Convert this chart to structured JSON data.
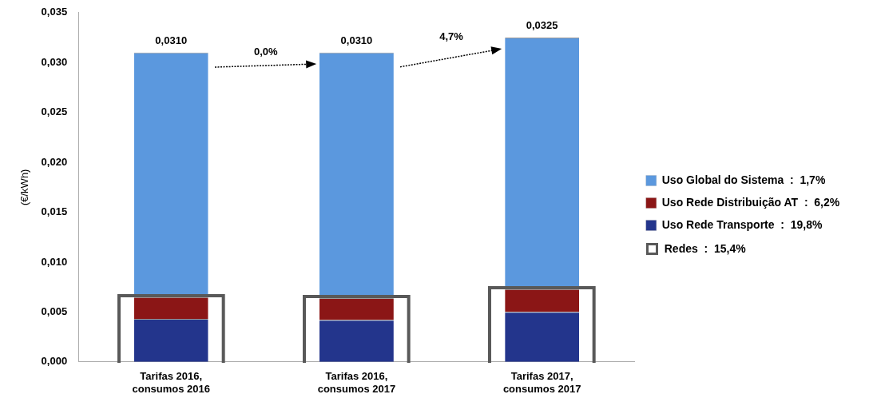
{
  "chart_data": {
    "type": "bar",
    "stacked": true,
    "ylabel": "(€/kWh)",
    "categories": [
      "Tarifas 2016, consumos 2016",
      "Tarifas 2016, consumos 2017",
      "Tarifas 2017, consumos 2017"
    ],
    "series": [
      {
        "name": "Uso Rede Transporte  :  19,8%",
        "color": "#23358c",
        "values": [
          0.0043,
          0.0042,
          0.005
        ]
      },
      {
        "name": "Uso Rede Distribuição AT  :  6,2%",
        "color": "#8b1616",
        "values": [
          0.0022,
          0.0022,
          0.0023
        ]
      },
      {
        "name": "Uso Global do Sistema  :  1,7%",
        "color": "#5b98de",
        "values": [
          0.0245,
          0.0246,
          0.0252
        ]
      }
    ],
    "totals": [
      "0,0310",
      "0,0310",
      "0,0325"
    ],
    "annotations": [
      "0,0%",
      "4,7%",
      "Redes  :  15,4%"
    ],
    "ylim": [
      0,
      0.035
    ],
    "yticks": [
      {
        "value": 0,
        "label": "0,000"
      },
      {
        "value": 0.005,
        "label": "0,005"
      },
      {
        "value": 0.01,
        "label": "0,010"
      },
      {
        "value": 0.015,
        "label": "0,015"
      },
      {
        "value": 0.02,
        "label": "0,020"
      },
      {
        "value": 0.025,
        "label": "0,025"
      },
      {
        "value": 0.03,
        "label": "0,030"
      },
      {
        "value": 0.035,
        "label": "0,035"
      }
    ],
    "grid": false,
    "legend": "right"
  }
}
